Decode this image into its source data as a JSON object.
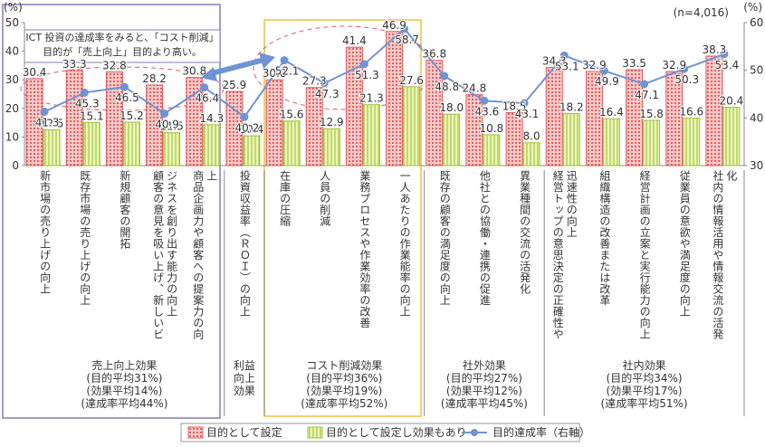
{
  "chart_data": {
    "type": "bar",
    "y_label": "(%)",
    "y2_label": "(%)",
    "note": "(n=4,016)",
    "annotation": [
      "ICT 投資の達成率をみると、「コスト削減」",
      "目的が「売上向上」目的より高い。"
    ],
    "categories": [
      "新市場の売り上げの向上",
      "既存市場の売り上げの向上",
      "新規顧客の開拓",
      "顧客の意見を吸い上げ、新しいビジネスを創り出す能力の向上",
      "商品企画力や顧客への提案力の向上",
      "投資収益率（ＲＯＩ）の向上",
      "在庫の圧縮",
      "人員の削減",
      "業務プロセスや作業効率の改善",
      "一人あたりの作業能率の向上",
      "既存の顧客の満足度の向上",
      "他社との協働・連携の促進",
      "異業種間の交流の活発化",
      "経営トップの意思決定の正確性や迅速性の向上",
      "組織構造の改善または改革",
      "経営計画の立案と実行能力の向上",
      "従業員の意欲や満足度の向上",
      "社内の情報活用や情報交流の活発化"
    ],
    "series": [
      {
        "name": "目的として設定",
        "color": "#e05a5a",
        "values": [
          30.4,
          33.3,
          32.8,
          28.2,
          30.8,
          25.9,
          30.0,
          27.3,
          41.4,
          46.9,
          36.8,
          24.8,
          18.5,
          34.3,
          32.9,
          33.5,
          32.9,
          38.3
        ],
        "value_labels": [
          "30.4",
          "33.3",
          "32.8",
          "28.2",
          "30.8",
          "25.9",
          "30.0",
          "27.3",
          "41.4",
          "46.9",
          "36.8",
          "24.8",
          "18.5",
          "34.3",
          "32.9",
          "33.5",
          "32.9",
          "38.3"
        ]
      },
      {
        "name": "目的として設定し効果もあり",
        "color": "#9fc23a",
        "values": [
          12.5,
          15.1,
          15.2,
          11.5,
          14.3,
          10.4,
          15.6,
          12.9,
          21.3,
          27.6,
          18.0,
          10.8,
          8.0,
          18.2,
          16.4,
          15.8,
          16.6,
          20.4
        ],
        "value_labels": [
          "12.5",
          "15.1",
          "15.2",
          "11.5",
          "14.3",
          "10.4",
          "15.6",
          "12.9",
          "21.3",
          "27.6",
          "18.0",
          "10.8",
          "8.0",
          "18.2",
          "16.4",
          "15.8",
          "16.6",
          "20.4"
        ]
      },
      {
        "name": "目的達成率（右軸）",
        "type": "line",
        "axis": "y2",
        "color": "#6f93d3",
        "values": [
          41.3,
          45.3,
          46.5,
          40.9,
          46.4,
          40.2,
          52.1,
          47.3,
          51.3,
          58.7,
          48.8,
          43.6,
          43.1,
          53.1,
          49.9,
          47.1,
          50.3,
          53.4
        ],
        "value_labels": [
          "41.3",
          "45.3",
          "46.5",
          "40.9",
          "46.4",
          "40.2",
          "52.1",
          "47.3",
          "51.3",
          "58.7",
          "48.8",
          "43.6",
          "43.1",
          "53.1",
          "49.9",
          "47.1",
          "50.3",
          "53.4"
        ]
      }
    ],
    "ylim": [
      0,
      50
    ],
    "yticks": [
      0,
      10,
      20,
      30,
      40,
      50
    ],
    "y2lim": [
      30,
      60
    ],
    "y2ticks": [
      30,
      40,
      50,
      60
    ],
    "groups": [
      [
        "売上向上効果",
        "(目的平均31%)",
        "(効果平均14%)",
        "(達成率平均44%)"
      ],
      [
        "利益",
        "向上",
        "効果"
      ],
      [
        "コスト削減効果",
        "(目的平均36%)",
        "(効果平均19%)",
        "(達成率平均52%)"
      ],
      [
        "社外効果",
        "(目的平均27%)",
        "(効果平均12%)",
        "(達成率平均45%)"
      ],
      [
        "社内効果",
        "(目的平均34%)",
        "(効果平均17%)",
        "(達成率平均51%)"
      ]
    ]
  }
}
